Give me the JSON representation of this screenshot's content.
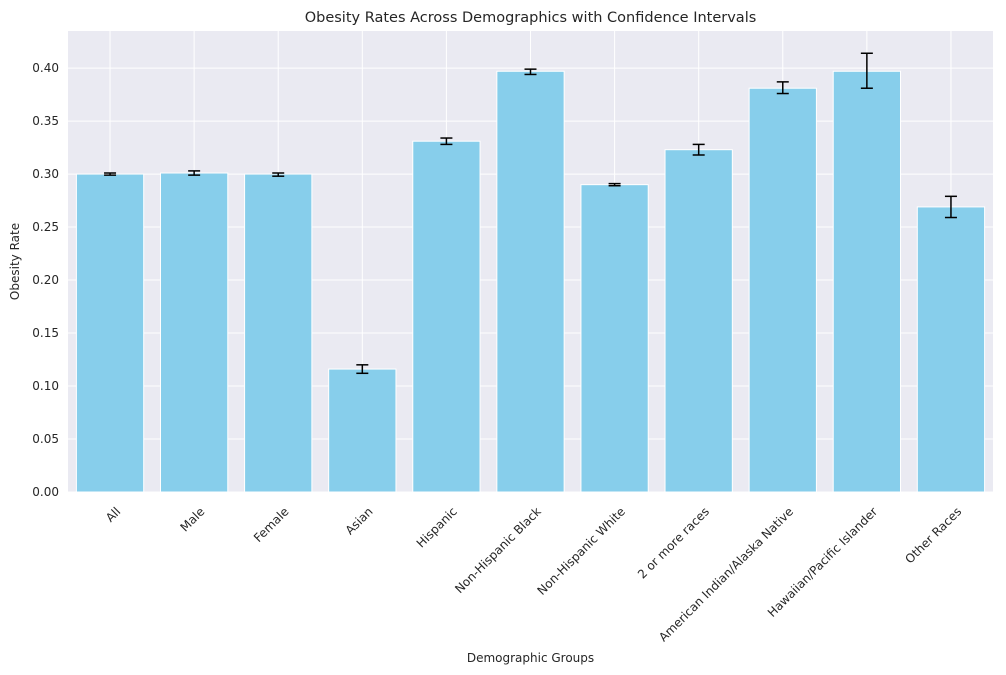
{
  "chart_data": {
    "type": "bar",
    "title": "Obesity Rates Across Demographics with Confidence Intervals",
    "xlabel": "Demographic Groups",
    "ylabel": "Obesity Rate",
    "ylim": [
      0,
      0.435
    ],
    "yticks": [
      0.0,
      0.05,
      0.1,
      0.15,
      0.2,
      0.25,
      0.3,
      0.35,
      0.4
    ],
    "ytick_labels": [
      "0.00",
      "0.05",
      "0.10",
      "0.15",
      "0.20",
      "0.25",
      "0.30",
      "0.35",
      "0.40"
    ],
    "grid": true,
    "bar_color": "#87CEEB",
    "errorbar_color": "#000000",
    "background_color": "#EAEAF2",
    "categories": [
      "All",
      "Male",
      "Female",
      "Asian",
      "Hispanic",
      "Non-Hispanic Black",
      "Non-Hispanic White",
      "2 or more races",
      "American Indian/Alaska Native",
      "Hawaiian/Pacific Islander",
      "Other Races"
    ],
    "values": [
      0.3,
      0.301,
      0.3,
      0.116,
      0.331,
      0.397,
      0.29,
      0.323,
      0.381,
      0.397,
      0.269
    ],
    "ci_lower": [
      0.299,
      0.299,
      0.298,
      0.112,
      0.328,
      0.394,
      0.289,
      0.318,
      0.376,
      0.381,
      0.259
    ],
    "ci_upper": [
      0.301,
      0.303,
      0.301,
      0.12,
      0.334,
      0.399,
      0.291,
      0.328,
      0.387,
      0.414,
      0.279
    ]
  }
}
